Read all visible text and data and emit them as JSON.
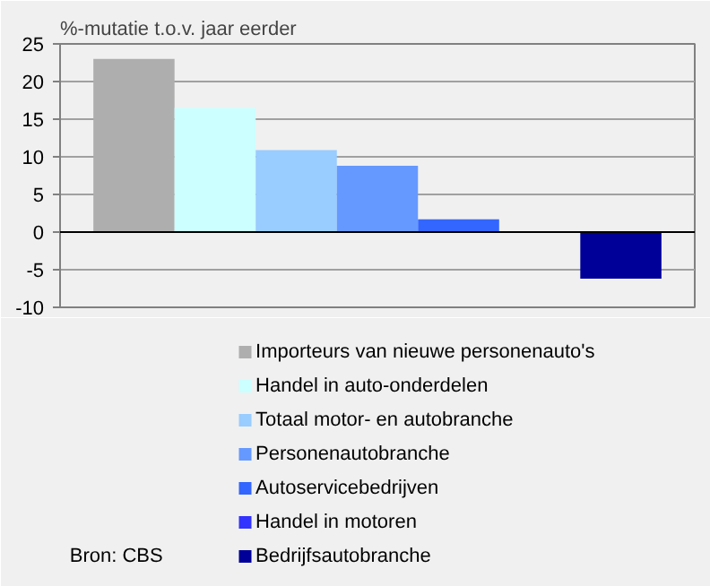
{
  "chart_data": {
    "type": "bar",
    "ylabel": "%-mutatie t.o.v. jaar eerder",
    "categories": [
      null
    ],
    "series": [
      {
        "name": "Importeurs van nieuwe personenauto's",
        "color": "#aeaeae",
        "values": [
          23
        ]
      },
      {
        "name": "Handel in auto-onderdelen",
        "color": "#ccffff",
        "values": [
          16.5
        ]
      },
      {
        "name": "Totaal motor- en autobranche",
        "color": "#99ccff",
        "values": [
          10.9
        ]
      },
      {
        "name": "Personenautobranche",
        "color": "#6699ff",
        "values": [
          8.8
        ]
      },
      {
        "name": "Autoservicebedrijven",
        "color": "#3366ff",
        "values": [
          1.7
        ]
      },
      {
        "name": "Handel in motoren",
        "color": "#3333ff",
        "values": [
          0
        ]
      },
      {
        "name": "Bedrijfsautobranche",
        "color": "#000099",
        "values": [
          -6.2
        ]
      }
    ],
    "ylim": [
      -10,
      25
    ],
    "yticks": [
      -10,
      -5,
      0,
      5,
      10,
      15,
      20,
      25
    ],
    "grid": "y",
    "legend": "bottom",
    "tick_labels": "y",
    "annotations": [
      "Bron: CBS"
    ]
  }
}
